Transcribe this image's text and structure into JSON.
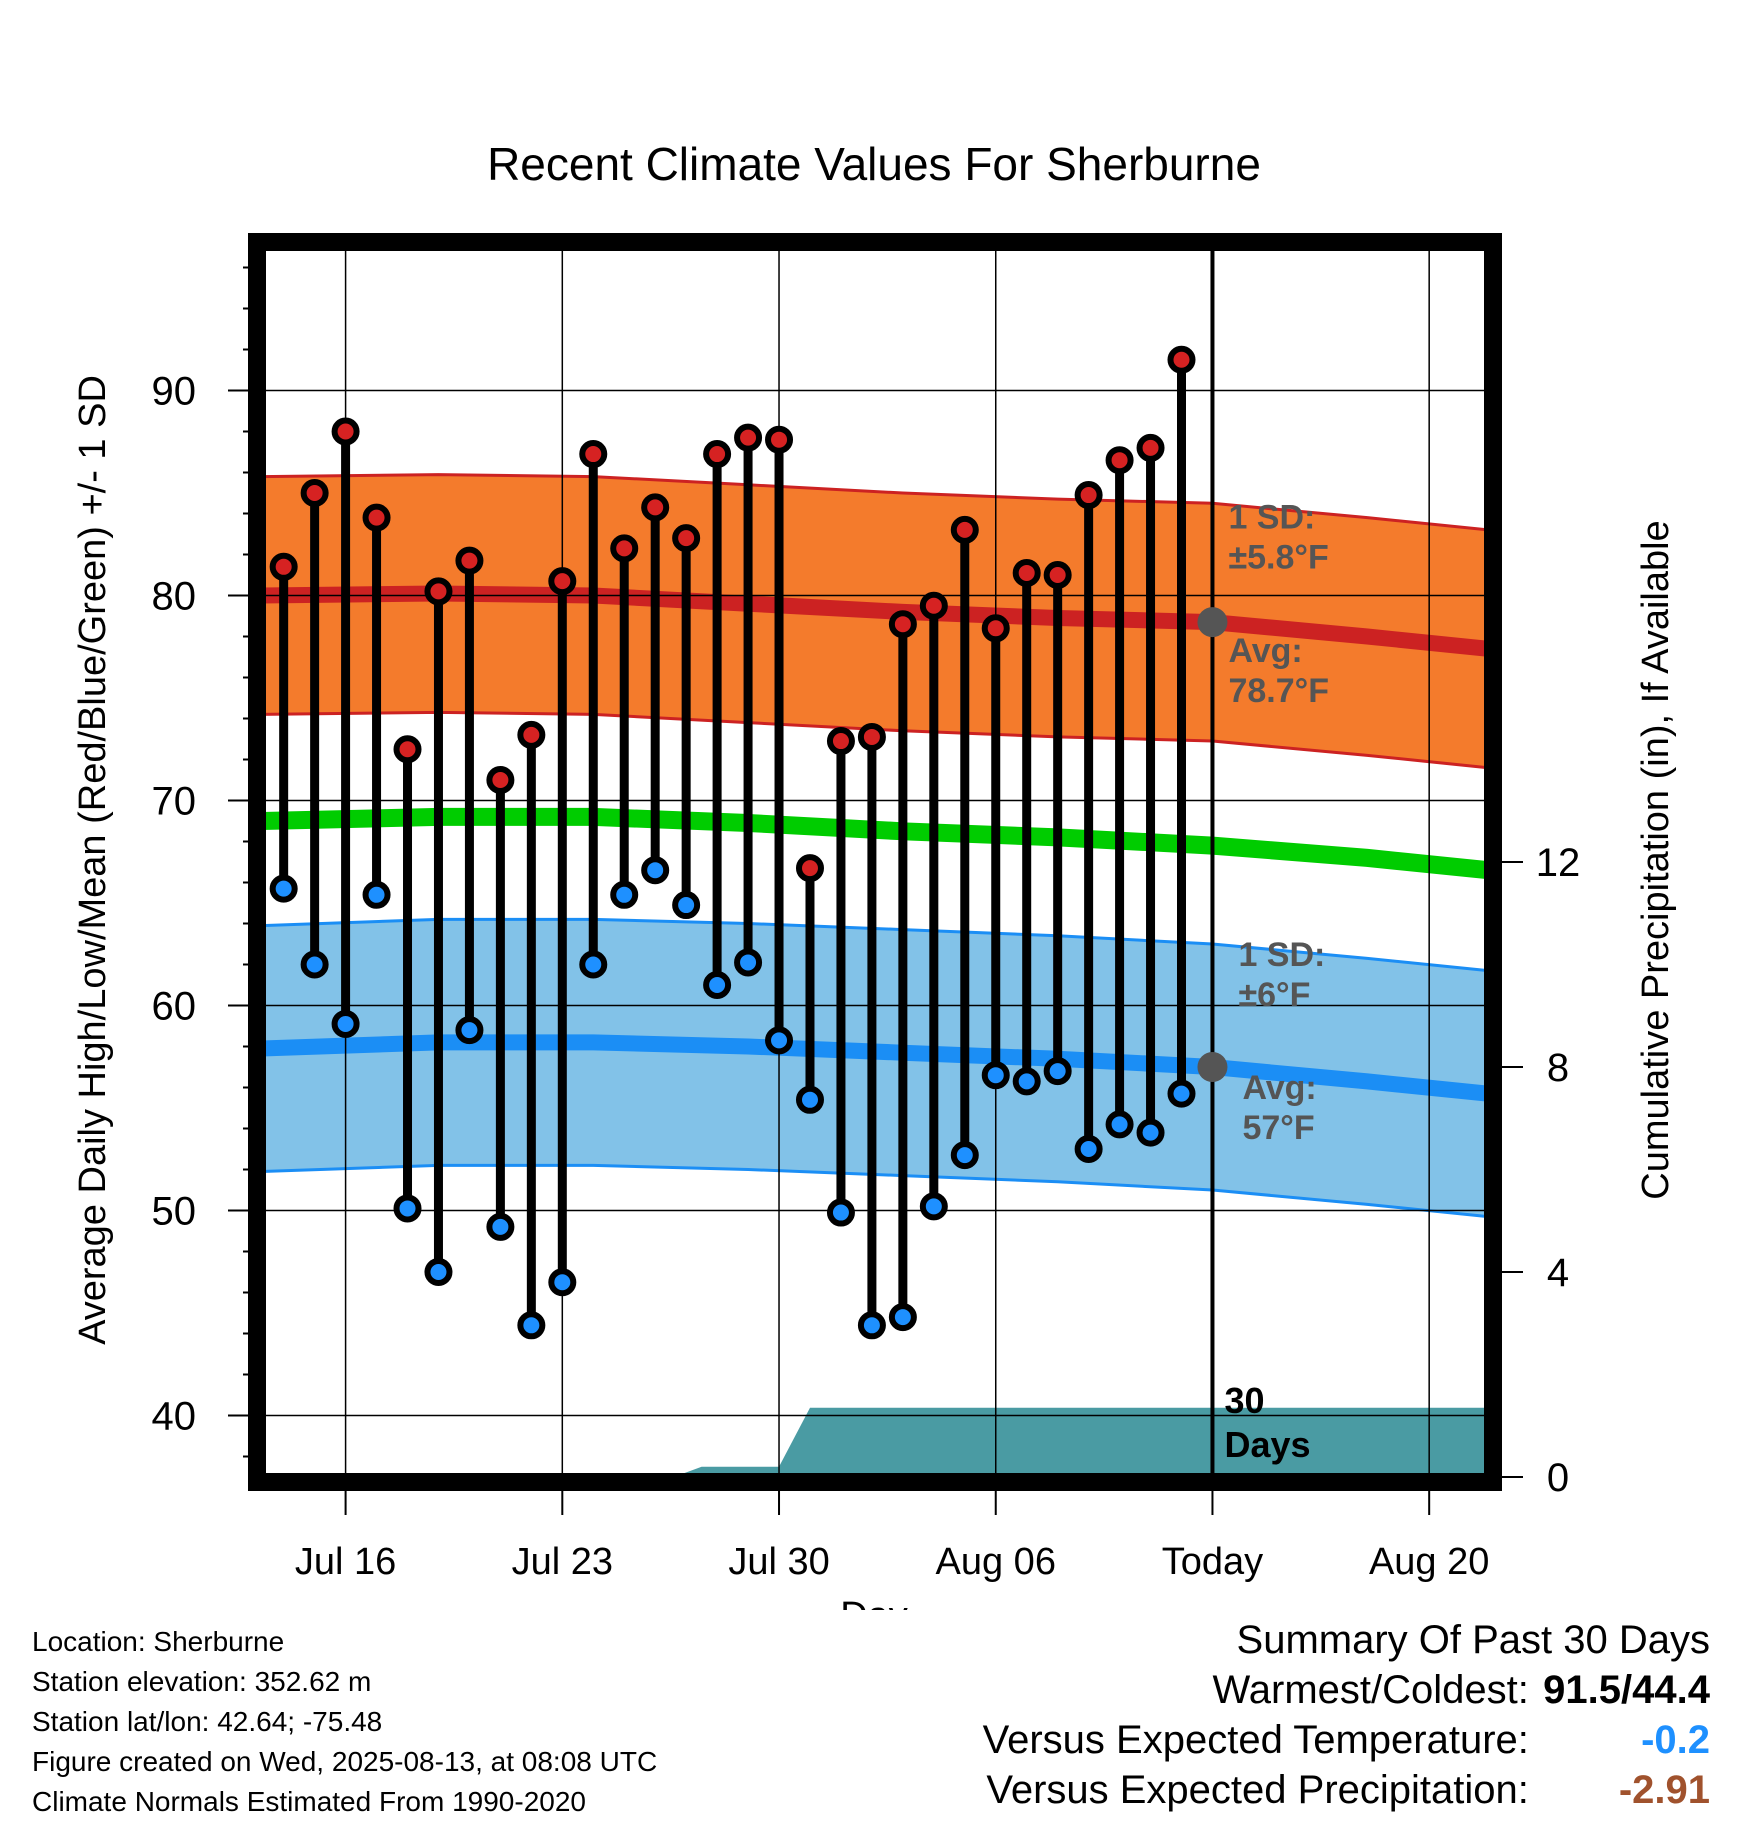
{
  "chart_data": {
    "type": "line",
    "title": "Recent Climate Values For Sherburne",
    "xlabel": "Day",
    "ylabel_left": "Average Daily High/Low/Mean (Red/Blue/Green) +/- 1 SD",
    "ylabel_right": "Cumulative Precipitation (in), If Available",
    "left_axis": {
      "ticks": [
        40,
        50,
        60,
        70,
        80,
        90
      ],
      "range": [
        37,
        97
      ]
    },
    "right_axis": {
      "ticks": [
        "0",
        "4",
        "8",
        "12"
      ],
      "tick_values": [
        0,
        4,
        8,
        12
      ],
      "range": [
        0,
        24
      ]
    },
    "x_ticks": [
      {
        "day": 2,
        "label": "Jul 16"
      },
      {
        "day": 9,
        "label": "Jul 23"
      },
      {
        "day": 16,
        "label": "Jul 30"
      },
      {
        "day": 23,
        "label": "Aug 06"
      },
      {
        "day": 30,
        "label": "Today"
      },
      {
        "day": 37,
        "label": "Aug 20"
      }
    ],
    "x_range": [
      -0.7,
      38.9
    ],
    "today_day": 30,
    "period_label": [
      "30",
      "Days"
    ],
    "days_start": "Jul 14",
    "highs": [
      81.4,
      85.0,
      88.0,
      83.8,
      72.5,
      80.2,
      81.7,
      71.0,
      73.2,
      80.7,
      86.9,
      82.3,
      84.3,
      82.8,
      86.9,
      87.7,
      87.6,
      66.7,
      72.9,
      73.1,
      78.6,
      79.5,
      83.2,
      78.4,
      81.1,
      81.0,
      84.9,
      86.6,
      87.2,
      91.5
    ],
    "lows": [
      65.7,
      62.0,
      59.1,
      65.4,
      50.1,
      47.0,
      58.8,
      49.2,
      44.4,
      46.5,
      62.0,
      65.4,
      66.6,
      64.9,
      61.0,
      62.1,
      58.3,
      55.4,
      49.9,
      44.4,
      44.8,
      50.2,
      52.7,
      56.6,
      56.3,
      56.8,
      53.0,
      54.2,
      53.8,
      55.7
    ],
    "normal_high": {
      "x": [
        -0.7,
        5,
        10,
        15,
        20,
        25,
        30,
        35,
        38.9
      ],
      "mean": [
        80.0,
        80.1,
        80.0,
        79.6,
        79.2,
        78.9,
        78.7,
        78.0,
        77.4
      ],
      "sd": 5.8,
      "sd_label": [
        "1 SD:",
        "±5.8°F"
      ],
      "avg_label": [
        "Avg:",
        "78.7°F"
      ]
    },
    "normal_low": {
      "x": [
        -0.7,
        5,
        10,
        15,
        20,
        25,
        30,
        35,
        38.9
      ],
      "mean": [
        57.9,
        58.2,
        58.2,
        58.0,
        57.7,
        57.4,
        57.0,
        56.3,
        55.7
      ],
      "sd": 6.0,
      "sd_label": [
        "1 SD:",
        "±6°F"
      ],
      "avg_label": [
        "Avg:",
        "57°F"
      ]
    },
    "normal_mean": {
      "x": [
        -0.7,
        5,
        10,
        15,
        20,
        25,
        30,
        35,
        38.9
      ],
      "values": [
        69.0,
        69.2,
        69.2,
        68.9,
        68.5,
        68.2,
        67.8,
        67.2,
        66.6
      ]
    },
    "precip_cumulative": {
      "x": [
        -0.7,
        12.6,
        13.5,
        16.0,
        17.0,
        38.9
      ],
      "values": [
        0.0,
        0.0,
        0.2,
        0.2,
        1.35,
        1.35
      ]
    },
    "colors": {
      "high_band": "#f47b2c",
      "high_line": "#cc2222",
      "low_band": "#82c2e8",
      "low_line": "#1b8ef5",
      "mean_line": "#00cc00",
      "precip": "#4a9ba3",
      "high_marker": "#d62222",
      "low_marker": "#1e90ff",
      "avg_dot": "#555555",
      "label_gray": "#555555"
    }
  },
  "footer": {
    "location": "Location: Sherburne",
    "elevation": "Station elevation: 352.62 m",
    "latlon": "Station lat/lon: 42.64; -75.48",
    "created": "Figure created on Wed, 2025-08-13, at 08:08 UTC",
    "normals": "Climate Normals Estimated From 1990-2020"
  },
  "summary": {
    "heading": "Summary Of Past 30 Days",
    "warm_cold_label": "Warmest/Coldest:",
    "warm_cold_value": "91.5/44.4",
    "temp_label": "Versus Expected Temperature:",
    "temp_value": "-0.2",
    "temp_color": "#1e90ff",
    "precip_label": "Versus Expected Precipitation:",
    "precip_value": "-2.91",
    "precip_color": "#a0522d"
  }
}
